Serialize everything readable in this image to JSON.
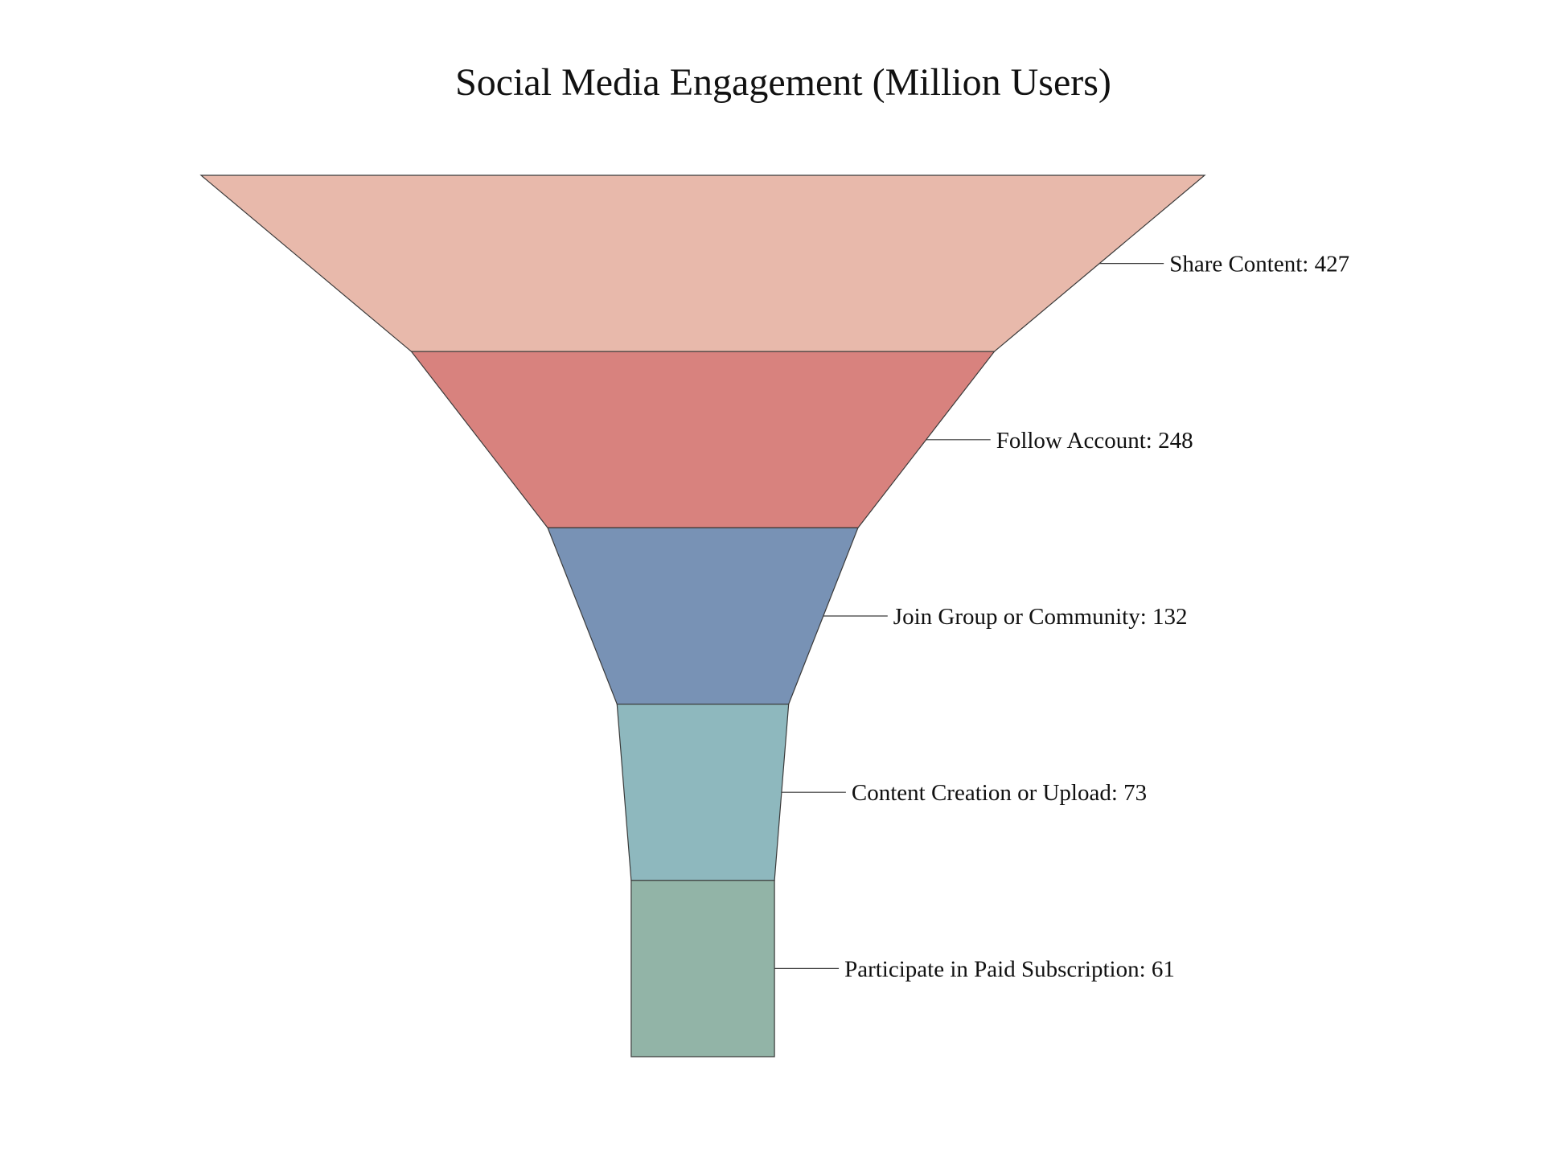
{
  "chart_data": {
    "type": "funnel",
    "title": "Social Media Engagement (Million Users)",
    "label_format": "{stage}: {value}",
    "stages": [
      {
        "stage": "Share Content",
        "value": 427,
        "color": "#E8B9AB"
      },
      {
        "stage": "Follow Account",
        "value": 248,
        "color": "#D8827E"
      },
      {
        "stage": "Join Group or Community",
        "value": 132,
        "color": "#7892B5"
      },
      {
        "stage": "Content Creation or Upload",
        "value": 73,
        "color": "#8EB8BE"
      },
      {
        "stage": "Participate in Paid Subscription",
        "value": 61,
        "color": "#92B4A7"
      }
    ]
  }
}
